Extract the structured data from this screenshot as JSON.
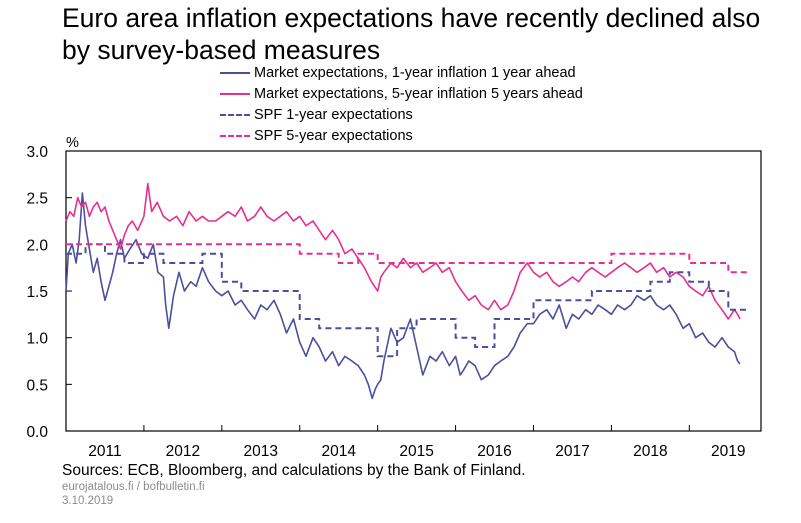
{
  "title": "Euro area inflation expectations have recently declined also by survey-based measures",
  "footer": {
    "source": "Sources: ECB, Bloomberg, and calculations by the Bank of Finland.",
    "site": "eurojatalous.fi / bofbulletin.fi",
    "date": "3.10.2019"
  },
  "colors": {
    "navy": "#4b4f9e",
    "magenta": "#e6308f",
    "axis": "#000000"
  },
  "chart_data": {
    "type": "line",
    "title": "Euro area inflation expectations have recently declined also by survey-based measures",
    "ylabel": "%",
    "xlabel": "",
    "xlim": [
      2011,
      2019.92
    ],
    "ylim": [
      0,
      3
    ],
    "yticks": [
      "0.0",
      "0.5",
      "1.0",
      "1.5",
      "2.0",
      "2.5",
      "3.0"
    ],
    "xticks": [
      "2011",
      "2012",
      "2013",
      "2014",
      "2015",
      "2016",
      "2017",
      "2018",
      "2019"
    ],
    "grid": false,
    "legend_position": "top",
    "series": [
      {
        "name": "Market expectations, 1-year inflation 1 year ahead",
        "color": "#4b4f9e",
        "style": "solid",
        "x": [
          2011.0,
          2011.03,
          2011.08,
          2011.13,
          2011.17,
          2011.21,
          2011.25,
          2011.3,
          2011.35,
          2011.4,
          2011.45,
          2011.5,
          2011.55,
          2011.6,
          2011.65,
          2011.7,
          2011.75,
          2011.82,
          2011.9,
          2011.97,
          2012.05,
          2012.12,
          2012.18,
          2012.25,
          2012.28,
          2012.32,
          2012.38,
          2012.45,
          2012.52,
          2012.6,
          2012.67,
          2012.75,
          2012.83,
          2012.92,
          2013.0,
          2013.08,
          2013.17,
          2013.25,
          2013.33,
          2013.42,
          2013.5,
          2013.58,
          2013.67,
          2013.75,
          2013.83,
          2013.92,
          2014.0,
          2014.08,
          2014.17,
          2014.25,
          2014.33,
          2014.42,
          2014.5,
          2014.58,
          2014.67,
          2014.75,
          2014.83,
          2014.88,
          2014.93,
          2014.97,
          2015.0,
          2015.04,
          2015.08,
          2015.17,
          2015.25,
          2015.33,
          2015.42,
          2015.5,
          2015.58,
          2015.67,
          2015.75,
          2015.83,
          2015.92,
          2016.0,
          2016.06,
          2016.1,
          2016.17,
          2016.25,
          2016.33,
          2016.42,
          2016.5,
          2016.58,
          2016.67,
          2016.75,
          2016.83,
          2016.92,
          2017.0,
          2017.08,
          2017.17,
          2017.25,
          2017.33,
          2017.42,
          2017.5,
          2017.58,
          2017.67,
          2017.75,
          2017.83,
          2017.92,
          2018.0,
          2018.08,
          2018.17,
          2018.25,
          2018.33,
          2018.42,
          2018.5,
          2018.58,
          2018.67,
          2018.75,
          2018.83,
          2018.92,
          2019.0,
          2019.08,
          2019.17,
          2019.25,
          2019.33,
          2019.42,
          2019.5,
          2019.58,
          2019.62,
          2019.65
        ],
        "y": [
          1.5,
          1.9,
          2.0,
          1.8,
          2.05,
          2.55,
          2.2,
          1.95,
          1.7,
          1.85,
          1.6,
          1.4,
          1.55,
          1.7,
          1.9,
          2.05,
          1.85,
          1.95,
          2.05,
          1.9,
          1.85,
          2.0,
          1.7,
          1.65,
          1.35,
          1.1,
          1.45,
          1.7,
          1.5,
          1.6,
          1.55,
          1.75,
          1.6,
          1.5,
          1.45,
          1.5,
          1.35,
          1.4,
          1.3,
          1.2,
          1.35,
          1.3,
          1.4,
          1.25,
          1.05,
          1.2,
          0.95,
          0.8,
          1.0,
          0.9,
          0.75,
          0.85,
          0.7,
          0.8,
          0.75,
          0.7,
          0.6,
          0.5,
          0.35,
          0.45,
          0.5,
          0.55,
          0.75,
          1.1,
          0.95,
          1.0,
          1.2,
          0.9,
          0.6,
          0.8,
          0.75,
          0.85,
          0.7,
          0.8,
          0.6,
          0.65,
          0.75,
          0.7,
          0.55,
          0.6,
          0.7,
          0.75,
          0.8,
          0.9,
          1.05,
          1.15,
          1.15,
          1.25,
          1.3,
          1.2,
          1.35,
          1.1,
          1.25,
          1.2,
          1.3,
          1.25,
          1.35,
          1.3,
          1.25,
          1.35,
          1.3,
          1.35,
          1.45,
          1.4,
          1.45,
          1.35,
          1.3,
          1.35,
          1.25,
          1.1,
          1.15,
          1.0,
          1.05,
          0.95,
          0.9,
          1.0,
          0.9,
          0.85,
          0.75,
          0.72
        ]
      },
      {
        "name": "Market expectations, 5-year inflation 5 years ahead",
        "color": "#e6308f",
        "style": "solid",
        "x": [
          2011.0,
          2011.05,
          2011.1,
          2011.15,
          2011.2,
          2011.25,
          2011.3,
          2011.35,
          2011.4,
          2011.45,
          2011.5,
          2011.55,
          2011.6,
          2011.65,
          2011.7,
          2011.75,
          2011.8,
          2011.85,
          2011.92,
          2012.0,
          2012.05,
          2012.1,
          2012.17,
          2012.25,
          2012.33,
          2012.42,
          2012.5,
          2012.58,
          2012.67,
          2012.75,
          2012.83,
          2012.92,
          2013.0,
          2013.08,
          2013.17,
          2013.25,
          2013.33,
          2013.42,
          2013.5,
          2013.58,
          2013.67,
          2013.75,
          2013.83,
          2013.92,
          2014.0,
          2014.08,
          2014.17,
          2014.25,
          2014.33,
          2014.42,
          2014.5,
          2014.58,
          2014.67,
          2014.75,
          2014.83,
          2014.92,
          2015.0,
          2015.04,
          2015.08,
          2015.17,
          2015.25,
          2015.33,
          2015.42,
          2015.5,
          2015.58,
          2015.67,
          2015.75,
          2015.83,
          2015.92,
          2016.0,
          2016.08,
          2016.17,
          2016.25,
          2016.33,
          2016.42,
          2016.5,
          2016.58,
          2016.67,
          2016.75,
          2016.83,
          2016.92,
          2017.0,
          2017.08,
          2017.17,
          2017.25,
          2017.33,
          2017.42,
          2017.5,
          2017.58,
          2017.67,
          2017.75,
          2017.83,
          2017.92,
          2018.0,
          2018.08,
          2018.17,
          2018.25,
          2018.33,
          2018.42,
          2018.5,
          2018.58,
          2018.67,
          2018.75,
          2018.83,
          2018.92,
          2019.0,
          2019.08,
          2019.17,
          2019.25,
          2019.33,
          2019.42,
          2019.5,
          2019.58,
          2019.62,
          2019.65
        ],
        "y": [
          2.25,
          2.35,
          2.3,
          2.5,
          2.4,
          2.45,
          2.3,
          2.4,
          2.45,
          2.35,
          2.4,
          2.25,
          2.15,
          2.05,
          1.95,
          2.1,
          2.2,
          2.25,
          2.15,
          2.3,
          2.65,
          2.35,
          2.45,
          2.3,
          2.25,
          2.3,
          2.2,
          2.35,
          2.25,
          2.3,
          2.25,
          2.25,
          2.3,
          2.35,
          2.3,
          2.4,
          2.25,
          2.3,
          2.4,
          2.3,
          2.25,
          2.3,
          2.35,
          2.25,
          2.3,
          2.2,
          2.25,
          2.15,
          2.05,
          2.15,
          2.05,
          1.9,
          1.95,
          1.85,
          1.75,
          1.6,
          1.5,
          1.65,
          1.7,
          1.8,
          1.75,
          1.85,
          1.75,
          1.8,
          1.7,
          1.75,
          1.8,
          1.7,
          1.75,
          1.6,
          1.5,
          1.4,
          1.45,
          1.35,
          1.3,
          1.4,
          1.3,
          1.35,
          1.5,
          1.7,
          1.8,
          1.7,
          1.65,
          1.7,
          1.6,
          1.55,
          1.6,
          1.65,
          1.6,
          1.7,
          1.75,
          1.7,
          1.65,
          1.7,
          1.75,
          1.8,
          1.75,
          1.7,
          1.75,
          1.8,
          1.7,
          1.75,
          1.65,
          1.7,
          1.65,
          1.55,
          1.5,
          1.45,
          1.55,
          1.4,
          1.3,
          1.2,
          1.3,
          1.25,
          1.2
        ]
      },
      {
        "name": "SPF 1-year expectations",
        "color": "#4b4f9e",
        "style": "dashed",
        "x": [
          2011.0,
          2011.25,
          2011.5,
          2011.75,
          2012.0,
          2012.25,
          2012.5,
          2012.75,
          2013.0,
          2013.25,
          2013.5,
          2013.75,
          2014.0,
          2014.25,
          2014.5,
          2014.75,
          2015.0,
          2015.25,
          2015.5,
          2015.75,
          2016.0,
          2016.25,
          2016.5,
          2016.75,
          2017.0,
          2017.25,
          2017.5,
          2017.75,
          2018.0,
          2018.25,
          2018.5,
          2018.75,
          2019.0,
          2019.25,
          2019.5
        ],
        "y": [
          1.9,
          2.0,
          1.9,
          1.8,
          1.9,
          1.8,
          1.8,
          1.9,
          1.6,
          1.5,
          1.5,
          1.5,
          1.2,
          1.1,
          1.1,
          1.1,
          0.8,
          1.1,
          1.2,
          1.2,
          1.0,
          0.9,
          1.2,
          1.2,
          1.4,
          1.4,
          1.4,
          1.5,
          1.5,
          1.5,
          1.6,
          1.7,
          1.6,
          1.5,
          1.3
        ]
      },
      {
        "name": "SPF 5-year expectations",
        "color": "#e6308f",
        "style": "dashed",
        "x": [
          2011.0,
          2011.25,
          2011.5,
          2011.75,
          2012.0,
          2012.25,
          2012.5,
          2012.75,
          2013.0,
          2013.25,
          2013.5,
          2013.75,
          2014.0,
          2014.25,
          2014.5,
          2014.75,
          2015.0,
          2015.25,
          2015.5,
          2015.75,
          2016.0,
          2016.25,
          2016.5,
          2016.75,
          2017.0,
          2017.25,
          2017.5,
          2017.75,
          2018.0,
          2018.25,
          2018.5,
          2018.75,
          2019.0,
          2019.25,
          2019.5
        ],
        "y": [
          2.0,
          2.0,
          2.0,
          2.0,
          2.0,
          2.0,
          2.0,
          2.0,
          2.0,
          2.0,
          2.0,
          2.0,
          1.9,
          1.9,
          1.8,
          1.9,
          1.8,
          1.8,
          1.8,
          1.8,
          1.8,
          1.8,
          1.8,
          1.8,
          1.8,
          1.8,
          1.8,
          1.8,
          1.9,
          1.9,
          1.9,
          1.9,
          1.8,
          1.8,
          1.7
        ]
      }
    ]
  }
}
